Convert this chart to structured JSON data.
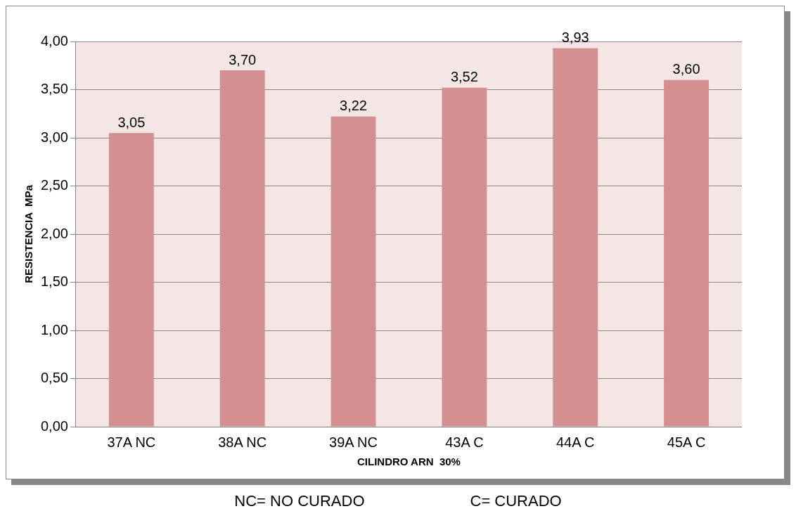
{
  "chart_data": {
    "type": "bar",
    "xlabel": "CILINDRO ARN  30%",
    "ylabel": "RESISTENCIA  MPa",
    "categories": [
      "37A NC",
      "38A NC",
      "39A NC",
      "43A C",
      "44A C",
      "45A C"
    ],
    "values": [
      3.05,
      3.7,
      3.22,
      3.52,
      3.93,
      3.6
    ],
    "value_labels": [
      "3,05",
      "3,70",
      "3,22",
      "3,52",
      "3,93",
      "3,60"
    ],
    "color": "#d49090",
    "ylim": [
      0,
      4
    ],
    "yticks": [
      {
        "value": 0,
        "label": "0,00"
      },
      {
        "value": 0.5,
        "label": "0,50"
      },
      {
        "value": 1,
        "label": "1,00"
      },
      {
        "value": 1.5,
        "label": "1,50"
      },
      {
        "value": 2,
        "label": "2,00"
      },
      {
        "value": 2.5,
        "label": "2,50"
      },
      {
        "value": 3,
        "label": "3,00"
      },
      {
        "value": 3.5,
        "label": "3,50"
      },
      {
        "value": 4,
        "label": "4,00"
      }
    ],
    "grid": "y",
    "annotations": [
      "NC= NO CURADO",
      "C= CURADO"
    ]
  }
}
